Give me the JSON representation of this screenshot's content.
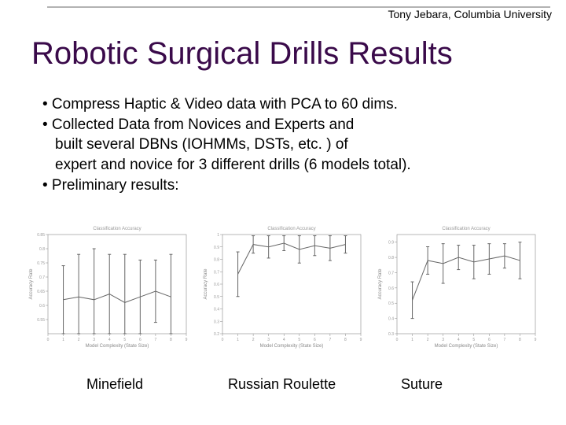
{
  "header": {
    "text": "Tony Jebara, Columbia University"
  },
  "title": "Robotic Surgical Drills Results",
  "bullets": {
    "b1": "• Compress Haptic & Video data with PCA to 60 dims.",
    "b2": "• Collected Data from Novices and Experts and",
    "b2a": "built several DBNs (IOHMMs, DSTs, etc. ) of",
    "b2b": "expert and novice for 3 different drills (6 models total).",
    "b3": "• Preliminary results:"
  },
  "charts": {
    "common": {
      "x_ticks": [
        0,
        1,
        2,
        3,
        4,
        5,
        6,
        7,
        8,
        9
      ],
      "x_label": "Model Complexity (State Size)",
      "top_title": "Classification Accuracy",
      "grid_color": "#e0e0e0",
      "axis_color": "#888888",
      "line_color": "#666666",
      "line_width": 1,
      "errorbar_halfwidth": 2,
      "background_color": "#ffffff"
    },
    "minefield": {
      "type": "errorbar",
      "caption": "Minefield",
      "y_label": "Accuracy Rate",
      "ylim": [
        0.5,
        0.85
      ],
      "y_ticks": [
        0.55,
        0.6,
        0.65,
        0.7,
        0.75,
        0.8,
        0.85
      ],
      "x": [
        1,
        2,
        3,
        4,
        5,
        6,
        7,
        8
      ],
      "y": [
        0.62,
        0.63,
        0.62,
        0.64,
        0.61,
        0.63,
        0.65,
        0.63
      ],
      "err": [
        0.12,
        0.15,
        0.18,
        0.14,
        0.17,
        0.13,
        0.11,
        0.15
      ]
    },
    "roulette": {
      "type": "errorbar",
      "caption": "Russian Roulette",
      "y_label": "Accuracy Rate",
      "ylim": [
        0.2,
        1.0
      ],
      "y_ticks": [
        0.2,
        0.3,
        0.4,
        0.5,
        0.6,
        0.7,
        0.8,
        0.9,
        1.0
      ],
      "x": [
        1,
        2,
        3,
        4,
        5,
        6,
        7,
        8
      ],
      "y": [
        0.68,
        0.92,
        0.9,
        0.93,
        0.88,
        0.91,
        0.89,
        0.92
      ],
      "err": [
        0.18,
        0.07,
        0.09,
        0.06,
        0.11,
        0.08,
        0.1,
        0.07
      ]
    },
    "suture": {
      "type": "errorbar",
      "caption": "Suture",
      "top_title": "Classification Accuracy",
      "y_label": "Accuracy Rate",
      "ylim": [
        0.3,
        0.95
      ],
      "y_ticks": [
        0.3,
        0.4,
        0.5,
        0.6,
        0.7,
        0.8,
        0.9
      ],
      "x": [
        1,
        2,
        3,
        4,
        5,
        6,
        7,
        8
      ],
      "y": [
        0.52,
        0.78,
        0.76,
        0.8,
        0.77,
        0.79,
        0.81,
        0.78
      ],
      "err": [
        0.12,
        0.09,
        0.13,
        0.08,
        0.11,
        0.1,
        0.08,
        0.12
      ]
    }
  }
}
